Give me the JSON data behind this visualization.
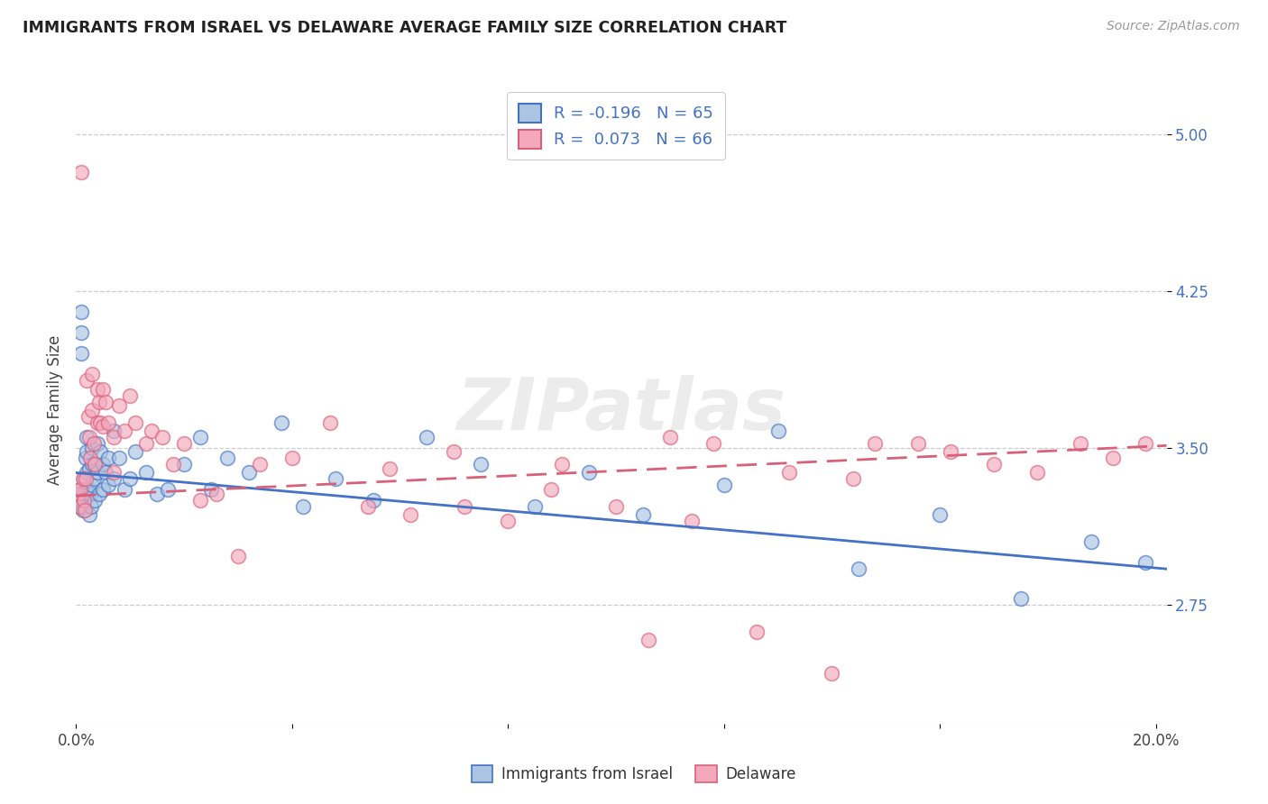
{
  "title": "IMMIGRANTS FROM ISRAEL VS DELAWARE AVERAGE FAMILY SIZE CORRELATION CHART",
  "source": "Source: ZipAtlas.com",
  "ylabel": "Average Family Size",
  "legend_label1": "Immigrants from Israel",
  "legend_label2": "Delaware",
  "r1": -0.196,
  "n1": 65,
  "r2": 0.073,
  "n2": 66,
  "color1": "#aac4e2",
  "color2": "#f4a8bc",
  "line_color1": "#4472c4",
  "line_color2": "#d9607a",
  "xlim": [
    0.0,
    0.202
  ],
  "ylim": [
    2.18,
    5.18
  ],
  "yticks": [
    2.75,
    3.5,
    4.25,
    5.0
  ],
  "xticks": [
    0.0,
    0.04,
    0.08,
    0.12,
    0.16,
    0.2
  ],
  "xticklabels": [
    "0.0%",
    "",
    "",
    "",
    "",
    "20.0%"
  ],
  "watermark": "ZIPatlas",
  "trendline1_x0": 0.0,
  "trendline1_y0": 3.38,
  "trendline1_x1": 0.202,
  "trendline1_y1": 2.92,
  "trendline2_x0": 0.0,
  "trendline2_y0": 3.27,
  "trendline2_x1": 0.202,
  "trendline2_y1": 3.51,
  "series1_x": [
    0.0005,
    0.0006,
    0.0008,
    0.001,
    0.001,
    0.001,
    0.0012,
    0.0013,
    0.0015,
    0.0015,
    0.0017,
    0.0018,
    0.002,
    0.002,
    0.002,
    0.0022,
    0.0024,
    0.0025,
    0.0026,
    0.0028,
    0.003,
    0.003,
    0.003,
    0.0032,
    0.0034,
    0.0035,
    0.004,
    0.004,
    0.0042,
    0.0045,
    0.005,
    0.005,
    0.0055,
    0.006,
    0.006,
    0.007,
    0.007,
    0.008,
    0.009,
    0.01,
    0.011,
    0.013,
    0.015,
    0.017,
    0.02,
    0.023,
    0.025,
    0.028,
    0.032,
    0.038,
    0.042,
    0.048,
    0.055,
    0.065,
    0.075,
    0.085,
    0.095,
    0.105,
    0.12,
    0.13,
    0.145,
    0.16,
    0.175,
    0.188,
    0.198
  ],
  "series1_y": [
    3.25,
    3.22,
    3.3,
    4.15,
    4.05,
    3.95,
    3.2,
    3.28,
    3.35,
    3.22,
    3.45,
    3.3,
    3.55,
    3.48,
    3.38,
    3.3,
    3.18,
    3.4,
    3.28,
    3.22,
    3.5,
    3.42,
    3.32,
    3.35,
    3.25,
    3.42,
    3.52,
    3.38,
    3.28,
    3.48,
    3.42,
    3.3,
    3.38,
    3.45,
    3.32,
    3.58,
    3.35,
    3.45,
    3.3,
    3.35,
    3.48,
    3.38,
    3.28,
    3.3,
    3.42,
    3.55,
    3.3,
    3.45,
    3.38,
    3.62,
    3.22,
    3.35,
    3.25,
    3.55,
    3.42,
    3.22,
    3.38,
    3.18,
    3.32,
    3.58,
    2.92,
    3.18,
    2.78,
    3.05,
    2.95
  ],
  "series2_x": [
    0.0004,
    0.0006,
    0.0008,
    0.001,
    0.0012,
    0.0014,
    0.0016,
    0.0018,
    0.002,
    0.0022,
    0.0024,
    0.0026,
    0.003,
    0.003,
    0.0032,
    0.0035,
    0.004,
    0.004,
    0.0042,
    0.0045,
    0.005,
    0.005,
    0.0055,
    0.006,
    0.007,
    0.007,
    0.008,
    0.009,
    0.01,
    0.011,
    0.013,
    0.014,
    0.016,
    0.018,
    0.02,
    0.023,
    0.026,
    0.03,
    0.034,
    0.04,
    0.047,
    0.054,
    0.062,
    0.07,
    0.08,
    0.09,
    0.1,
    0.11,
    0.118,
    0.126,
    0.132,
    0.14,
    0.148,
    0.156,
    0.162,
    0.17,
    0.178,
    0.186,
    0.192,
    0.198,
    0.114,
    0.058,
    0.072,
    0.088,
    0.106,
    0.144
  ],
  "series2_y": [
    3.28,
    3.22,
    3.3,
    4.82,
    3.35,
    3.25,
    3.2,
    3.35,
    3.82,
    3.65,
    3.55,
    3.45,
    3.85,
    3.68,
    3.52,
    3.42,
    3.78,
    3.62,
    3.72,
    3.62,
    3.78,
    3.6,
    3.72,
    3.62,
    3.55,
    3.38,
    3.7,
    3.58,
    3.75,
    3.62,
    3.52,
    3.58,
    3.55,
    3.42,
    3.52,
    3.25,
    3.28,
    2.98,
    3.42,
    3.45,
    3.62,
    3.22,
    3.18,
    3.48,
    3.15,
    3.42,
    3.22,
    3.55,
    3.52,
    2.62,
    3.38,
    2.42,
    3.52,
    3.52,
    3.48,
    3.42,
    3.38,
    3.52,
    3.45,
    3.52,
    3.15,
    3.4,
    3.22,
    3.3,
    2.58,
    3.35
  ]
}
